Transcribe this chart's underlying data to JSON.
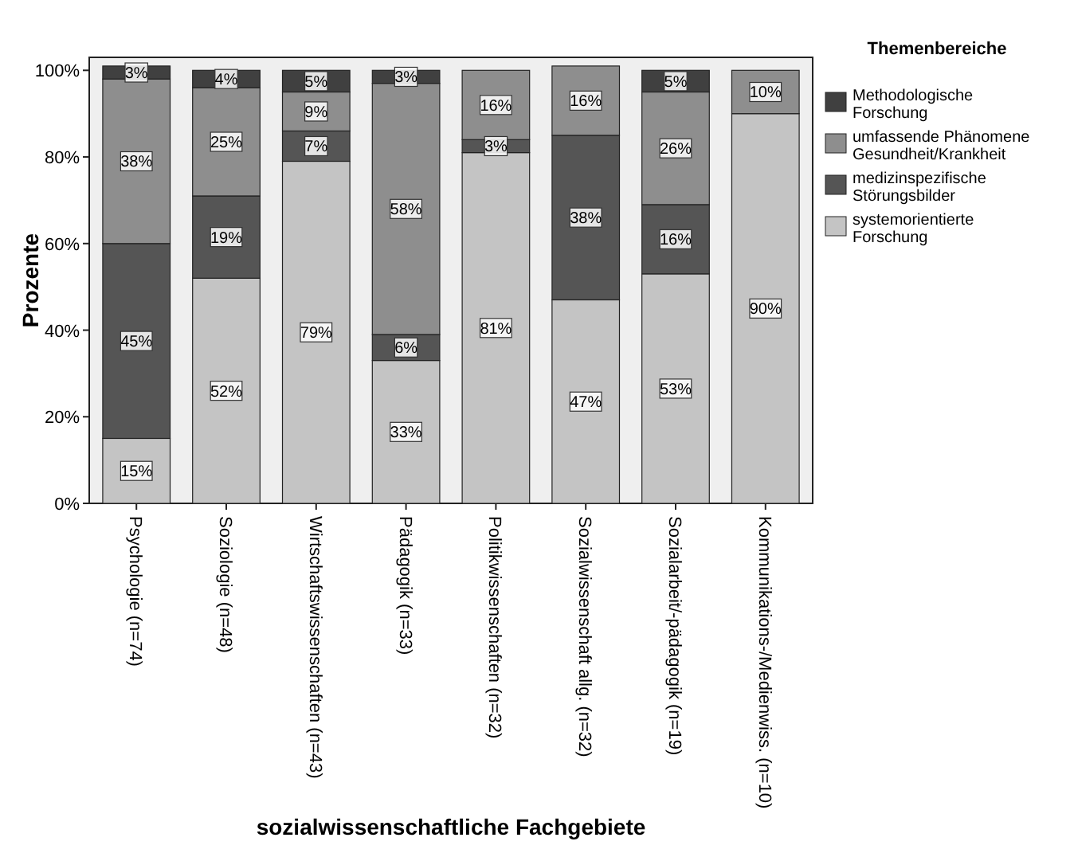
{
  "chart_data": {
    "type": "bar",
    "stacked": true,
    "xlabel": "sozialwissenschaftliche Fachgebiete",
    "ylabel": "Prozente",
    "legend_title": "Themenbereiche",
    "legend": "right",
    "categories": [
      "Psychologie (n=74)",
      "Soziologie (n=48)",
      "Wirtschaftswissenschaften (n=43)",
      "Pädagogik (n=33)",
      "Politikwissenschaften (n=32)",
      "Sozialwissenschaft allg. (n=32)",
      "Sozialarbeit/-pädagogik (n=19)",
      "Kommunikations-/Medienwiss. (n=10)"
    ],
    "ylim": [
      0,
      103
    ],
    "yticks": [
      {
        "value": 0,
        "label": "0%"
      },
      {
        "value": 20,
        "label": "20%"
      },
      {
        "value": 40,
        "label": "40%"
      },
      {
        "value": 60,
        "label": "60%"
      },
      {
        "value": 80,
        "label": "80%"
      },
      {
        "value": 100,
        "label": "100%"
      }
    ],
    "series": [
      {
        "name": "systemorientierte Forschung",
        "color": "#c4c4c4",
        "values": [
          15,
          52,
          79,
          33,
          81,
          47,
          53,
          90
        ],
        "value_labels": [
          "15%",
          "52%",
          "79%",
          "33%",
          "81%",
          "47%",
          "53%",
          "90%"
        ]
      },
      {
        "name": "medizinspezifische Störungsbilder",
        "color": "#555555",
        "values": [
          45,
          19,
          7,
          6,
          3,
          38,
          16,
          null
        ],
        "value_labels": [
          "45%",
          "19%",
          "7%",
          "6%",
          "3%",
          "38%",
          "16%",
          null
        ]
      },
      {
        "name": "umfassende Phänomene Gesundheit/Krankheit",
        "color": "#8e8e8e",
        "values": [
          38,
          25,
          9,
          58,
          16,
          16,
          26,
          10
        ],
        "value_labels": [
          "38%",
          "25%",
          "9%",
          "58%",
          "16%",
          "16%",
          "26%",
          "10%"
        ]
      },
      {
        "name": "Methodologische Forschung",
        "color": "#404040",
        "values": [
          3,
          4,
          5,
          3,
          null,
          null,
          5,
          null
        ],
        "value_labels": [
          "3%",
          "4%",
          "5%",
          "3%",
          null,
          null,
          "5%",
          null
        ]
      }
    ]
  }
}
